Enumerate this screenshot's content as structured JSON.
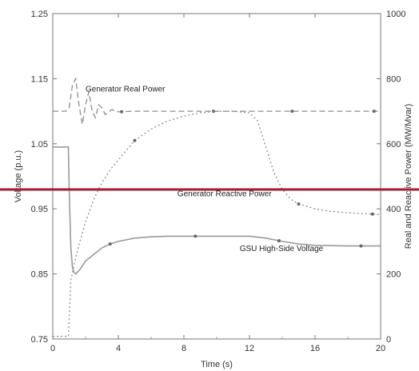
{
  "chart_data": {
    "type": "line",
    "title": "",
    "xlabel": "Time (s)",
    "ylabel_left": "Voltage (p.u.)",
    "ylabel_right": "Real and Reactive Power (MW/Mvar)",
    "xlim": [
      0,
      20
    ],
    "ylim_left": [
      0.75,
      1.25
    ],
    "ylim_right": [
      0,
      1000
    ],
    "x_ticks": [
      "0",
      "4",
      "8",
      "12",
      "16",
      "20"
    ],
    "y_ticks_left": [
      "0.75",
      "0.85",
      "0.95",
      "1.05",
      "1.15",
      "1.25"
    ],
    "y_ticks_right": [
      "0",
      "200",
      "400",
      "600",
      "800",
      "1000"
    ],
    "grid": false,
    "series": [
      {
        "name": "Generator Real Power",
        "axis": "right",
        "style": "dashed",
        "color": "#8c8c8c",
        "x": [
          0,
          0.8,
          1.0,
          1.2,
          1.4,
          1.6,
          1.8,
          2.0,
          2.2,
          2.4,
          2.6,
          2.8,
          3.0,
          3.2,
          3.6,
          4.0,
          5.0,
          6.0,
          8.0,
          10.0,
          12.0,
          14.0,
          16.0,
          18.0,
          20.0
        ],
        "y": [
          700,
          700,
          710,
          780,
          800,
          720,
          660,
          720,
          760,
          700,
          680,
          720,
          710,
          690,
          705,
          698,
          700,
          700,
          700,
          700,
          700,
          700,
          700,
          700,
          700
        ],
        "markers_x": [
          4.2,
          9.8,
          14.6,
          19.6
        ]
      },
      {
        "name": "Generator Reactive Power",
        "axis": "right",
        "style": "dotted",
        "color": "#8c8c8c",
        "x": [
          0,
          0.95,
          1.0,
          1.1,
          1.3,
          1.6,
          2.0,
          2.5,
          3.0,
          3.5,
          4.0,
          5.0,
          6.0,
          7.0,
          8.0,
          9.0,
          10.0,
          11.0,
          12.0,
          12.5,
          13.0,
          13.5,
          14.0,
          14.5,
          15.0,
          16.0,
          17.0,
          18.0,
          19.0,
          20.0
        ],
        "y": [
          8,
          8,
          60,
          180,
          230,
          290,
          360,
          430,
          480,
          520,
          550,
          610,
          645,
          670,
          685,
          695,
          700,
          700,
          695,
          670,
          590,
          510,
          460,
          430,
          415,
          400,
          392,
          388,
          385,
          383
        ],
        "markers_x": [
          5.0,
          15.0,
          19.5
        ]
      },
      {
        "name": "GSU High-Side Voltage",
        "axis": "left",
        "style": "solid",
        "color": "#9a9a9a",
        "x": [
          0,
          0.95,
          1.0,
          1.1,
          1.2,
          1.3,
          1.4,
          1.6,
          1.8,
          2.0,
          2.5,
          3.0,
          3.5,
          4.0,
          5.0,
          6.0,
          7.0,
          8.0,
          10.0,
          12.0,
          13.0,
          14.0,
          15.0,
          16.0,
          18.0,
          20.0
        ],
        "y": [
          1.045,
          1.045,
          0.98,
          0.89,
          0.86,
          0.852,
          0.85,
          0.855,
          0.862,
          0.87,
          0.88,
          0.89,
          0.896,
          0.9,
          0.905,
          0.907,
          0.908,
          0.908,
          0.908,
          0.908,
          0.905,
          0.9,
          0.896,
          0.894,
          0.893,
          0.893
        ],
        "markers_x": [
          3.5,
          8.7,
          13.8,
          18.8
        ]
      }
    ],
    "annotations": [
      {
        "text": "Generator Real Power",
        "series": "Generator Real Power",
        "x": 2.0,
        "y_right": 760
      },
      {
        "text": "Generator Reactive Power",
        "series": "Generator Reactive Power",
        "x": 7.6,
        "y_right": 438
      },
      {
        "text": "GSU High-Side Voltage",
        "series": "GSU High-Side Voltage",
        "x": 11.4,
        "y_left": 0.885
      }
    ],
    "overlay": {
      "color": "#a51c30"
    }
  }
}
